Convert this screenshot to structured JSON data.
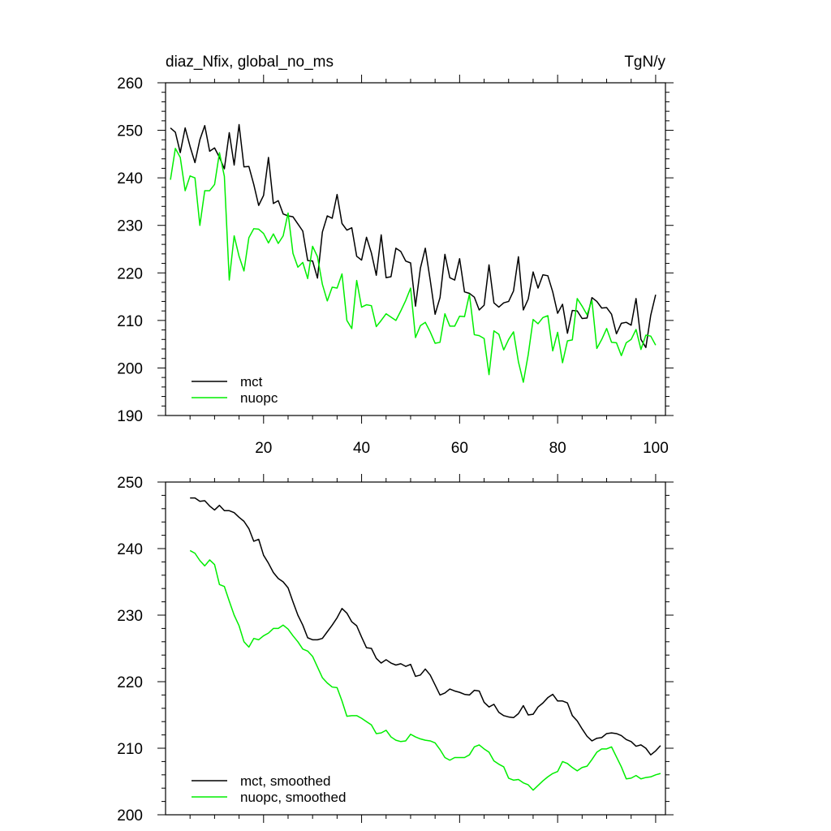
{
  "figure": {
    "title_left": "diaz_Nfix, global_no_ms",
    "title_right": "TgN/y"
  },
  "chart_data": [
    {
      "type": "line",
      "title": "diaz_Nfix, global_no_ms",
      "units": "TgN/y",
      "xlabel": "",
      "ylabel": "",
      "xlim": [
        0,
        102
      ],
      "ylim": [
        190,
        260
      ],
      "xticks": [
        "20",
        "40",
        "60",
        "80",
        "100"
      ],
      "yticks": [
        "190",
        "200",
        "210",
        "220",
        "230",
        "240",
        "250",
        "260"
      ],
      "legend_position": "bottom-left",
      "x_start": 1,
      "series": [
        {
          "name": "mct",
          "color": "#000000",
          "values": [
            250.5,
            249.6,
            245.3,
            250.5,
            246.6,
            243.2,
            248.0,
            251.0,
            245.6,
            246.3,
            244.3,
            241.9,
            249.5,
            242.7,
            251.2,
            242.3,
            242.4,
            238.6,
            234.2,
            236.3,
            244.3,
            234.6,
            235.2,
            232.4,
            232.0,
            231.8,
            230.3,
            228.8,
            222.6,
            222.5,
            218.9,
            228.6,
            232.0,
            231.5,
            236.5,
            230.4,
            229.0,
            229.5,
            223.5,
            222.7,
            227.5,
            224.2,
            219.5,
            228.0,
            219.0,
            219.2,
            225.2,
            224.5,
            222.5,
            222.1,
            213.0,
            221.0,
            225.2,
            218.5,
            211.3,
            214.8,
            223.9,
            219.0,
            218.5,
            223.0,
            216.0,
            215.7,
            214.9,
            212.2,
            213.2,
            221.7,
            213.7,
            212.8,
            213.7,
            214.0,
            216.2,
            223.4,
            212.2,
            214.5,
            220.2,
            216.8,
            219.6,
            219.4,
            216.0,
            211.5,
            213.4,
            207.3,
            212.1,
            212.0,
            210.4,
            210.5,
            214.8,
            214.0,
            212.6,
            212.7,
            211.3,
            207.2,
            209.4,
            209.6,
            209.0,
            214.6,
            206.0,
            204.3,
            211.1,
            215.4
          ]
        },
        {
          "name": "nuopc",
          "color": "#00ee00",
          "values": [
            239.6,
            246.2,
            244.3,
            237.3,
            240.4,
            240.0,
            230.0,
            237.3,
            237.3,
            238.6,
            245.3,
            240.3,
            218.5,
            227.8,
            223.5,
            220.4,
            227.4,
            229.3,
            229.2,
            228.3,
            226.3,
            228.2,
            226.2,
            227.8,
            232.6,
            224.1,
            221.2,
            222.2,
            218.8,
            225.6,
            223.4,
            217.6,
            214.1,
            217.0,
            216.8,
            219.8,
            210.0,
            208.3,
            218.4,
            212.8,
            213.3,
            213.1,
            208.7,
            210.0,
            211.4,
            210.7,
            210.0,
            212.0,
            214.2,
            216.8,
            206.4,
            208.9,
            209.6,
            207.6,
            205.2,
            205.4,
            211.4,
            208.8,
            208.8,
            210.9,
            210.8,
            215.5,
            207.0,
            206.8,
            206.2,
            198.6,
            207.8,
            207.1,
            203.8,
            206.0,
            207.6,
            201.3,
            197.0,
            202.8,
            210.2,
            209.3,
            210.6,
            211.0,
            203.6,
            207.5,
            201.1,
            205.7,
            205.9,
            214.6,
            213.0,
            211.2,
            214.2,
            204.1,
            206.0,
            208.3,
            205.4,
            205.3,
            202.6,
            205.3,
            206.0,
            208.1,
            203.9,
            206.9,
            206.7,
            204.8
          ]
        }
      ]
    },
    {
      "type": "line",
      "title": "",
      "xlabel": "",
      "ylabel": "",
      "xlim": [
        0,
        102
      ],
      "ylim": [
        200,
        250
      ],
      "yticks": [
        "200",
        "210",
        "220",
        "230",
        "240",
        "250"
      ],
      "legend_position": "bottom-left",
      "x_start": 5,
      "series": [
        {
          "name": "mct, smoothed",
          "color": "#000000",
          "values": [
            247.6,
            247.6,
            247.1,
            247.2,
            246.4,
            245.8,
            246.5,
            245.7,
            245.7,
            245.4,
            244.7,
            244.1,
            243.0,
            241.1,
            241.4,
            239.0,
            237.8,
            236.4,
            235.5,
            235.0,
            234.1,
            232.0,
            230.0,
            228.5,
            226.6,
            226.3,
            226.3,
            226.5,
            227.5,
            228.5,
            229.6,
            231.0,
            230.3,
            229.0,
            228.4,
            226.7,
            225.1,
            225.0,
            223.5,
            222.8,
            223.3,
            222.8,
            222.5,
            222.7,
            222.3,
            222.6,
            220.8,
            221.0,
            221.9,
            221.0,
            219.5,
            218.0,
            218.3,
            218.9,
            218.6,
            218.4,
            218.1,
            218.0,
            218.7,
            218.6,
            216.9,
            216.2,
            216.6,
            215.4,
            214.9,
            214.7,
            214.6,
            215.2,
            216.4,
            215.0,
            215.1,
            216.2,
            216.8,
            217.6,
            218.1,
            217.1,
            217.1,
            216.8,
            214.9,
            214.1,
            212.9,
            211.8,
            211.1,
            211.5,
            211.6,
            212.2,
            212.3,
            212.2,
            211.9,
            211.3,
            211.0,
            210.3,
            210.5,
            210.0,
            209.0,
            209.6,
            210.4
          ]
        },
        {
          "name": "nuopc, smoothed",
          "color": "#00ee00",
          "values": [
            239.7,
            239.3,
            238.2,
            237.4,
            238.3,
            237.6,
            234.6,
            234.3,
            232.1,
            230.0,
            228.4,
            226.0,
            225.2,
            226.5,
            226.3,
            226.9,
            227.3,
            228.0,
            228.0,
            228.5,
            227.9,
            226.9,
            226.0,
            224.9,
            224.6,
            223.8,
            222.2,
            220.6,
            219.8,
            219.2,
            219.1,
            217.1,
            214.8,
            214.9,
            214.9,
            214.5,
            214.0,
            213.5,
            212.2,
            212.3,
            212.7,
            211.7,
            211.2,
            211.0,
            211.1,
            212.1,
            211.7,
            211.4,
            211.2,
            211.1,
            210.8,
            209.8,
            208.6,
            208.2,
            208.6,
            208.6,
            208.6,
            209.0,
            210.2,
            210.5,
            209.9,
            209.4,
            208.1,
            207.6,
            207.2,
            205.5,
            205.2,
            205.3,
            204.8,
            204.5,
            203.7,
            204.4,
            205.1,
            205.7,
            206.2,
            206.5,
            208.0,
            207.7,
            207.1,
            206.6,
            207.1,
            207.3,
            208.3,
            209.4,
            209.9,
            209.9,
            210.2,
            208.7,
            207.2,
            205.4,
            205.5,
            205.9,
            205.4,
            205.6,
            205.7,
            206.0,
            206.2
          ]
        }
      ]
    }
  ]
}
